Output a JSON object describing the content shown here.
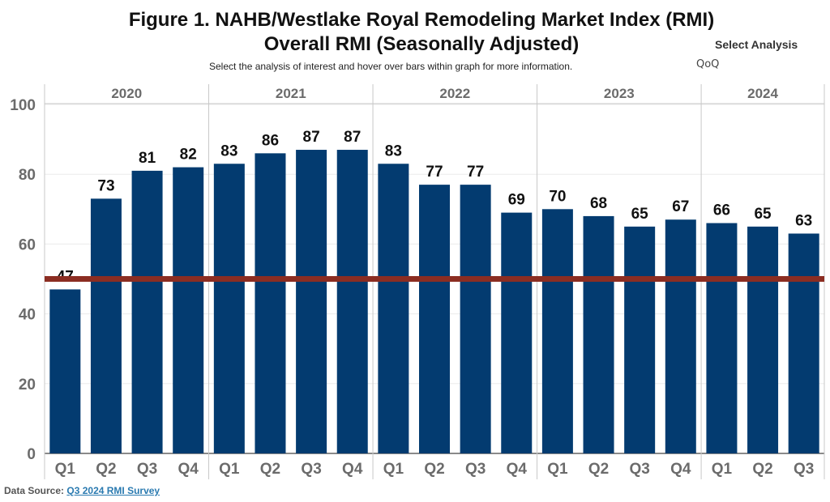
{
  "title_line1": "Figure 1. NAHB/Westlake Royal Remodeling Market Index (RMI)",
  "title_line2": "Overall RMI (Seasonally Adjusted)",
  "subtitle": "Select the analysis of interest and hover over bars within graph for more information.",
  "select_analysis": {
    "label": "Select Analysis",
    "value": "QoQ"
  },
  "footer": {
    "label": "Data Source:",
    "link_text": "Q3 2024 RMI Survey"
  },
  "colors": {
    "bar": "#033b70",
    "reference_line": "#8b2d22",
    "axis_text": "#6b6b6b",
    "divider": "#c8c8c8",
    "link": "#2a7ab0"
  },
  "chart_data": {
    "type": "bar",
    "years": [
      "2020",
      "2021",
      "2022",
      "2023",
      "2024"
    ],
    "categories": [
      {
        "year": "2020",
        "quarter": "Q1"
      },
      {
        "year": "2020",
        "quarter": "Q2"
      },
      {
        "year": "2020",
        "quarter": "Q3"
      },
      {
        "year": "2020",
        "quarter": "Q4"
      },
      {
        "year": "2021",
        "quarter": "Q1"
      },
      {
        "year": "2021",
        "quarter": "Q2"
      },
      {
        "year": "2021",
        "quarter": "Q3"
      },
      {
        "year": "2021",
        "quarter": "Q4"
      },
      {
        "year": "2022",
        "quarter": "Q1"
      },
      {
        "year": "2022",
        "quarter": "Q2"
      },
      {
        "year": "2022",
        "quarter": "Q3"
      },
      {
        "year": "2022",
        "quarter": "Q4"
      },
      {
        "year": "2023",
        "quarter": "Q1"
      },
      {
        "year": "2023",
        "quarter": "Q2"
      },
      {
        "year": "2023",
        "quarter": "Q3"
      },
      {
        "year": "2023",
        "quarter": "Q4"
      },
      {
        "year": "2024",
        "quarter": "Q1"
      },
      {
        "year": "2024",
        "quarter": "Q2"
      },
      {
        "year": "2024",
        "quarter": "Q3"
      }
    ],
    "values": [
      47,
      73,
      81,
      82,
      83,
      86,
      87,
      87,
      83,
      77,
      77,
      69,
      70,
      68,
      65,
      67,
      66,
      65,
      63
    ],
    "ylim": [
      0,
      100
    ],
    "yticks": [
      0,
      20,
      40,
      60,
      80,
      100
    ],
    "reference_line": 50,
    "data_labels": true,
    "grid": true
  }
}
